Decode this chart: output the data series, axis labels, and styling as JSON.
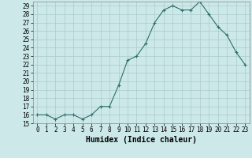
{
  "title": "",
  "xlabel": "Humidex (Indice chaleur)",
  "x": [
    0,
    1,
    2,
    3,
    4,
    5,
    6,
    7,
    8,
    9,
    10,
    11,
    12,
    13,
    14,
    15,
    16,
    17,
    18,
    19,
    20,
    21,
    22,
    23
  ],
  "y": [
    16,
    16,
    15.5,
    16,
    16,
    15.5,
    16,
    17,
    17,
    19.5,
    22.5,
    23,
    24.5,
    27,
    28.5,
    29,
    28.5,
    28.5,
    29.5,
    28,
    26.5,
    25.5,
    23.5,
    22
  ],
  "line_color": "#2d6e6a",
  "marker": "+",
  "bg_color": "#cce8e8",
  "grid_color": "#aacccc",
  "ylim": [
    15,
    29.5
  ],
  "xlim": [
    -0.5,
    23.5
  ],
  "yticks": [
    15,
    16,
    17,
    18,
    19,
    20,
    21,
    22,
    23,
    24,
    25,
    26,
    27,
    28,
    29
  ],
  "xticks": [
    0,
    1,
    2,
    3,
    4,
    5,
    6,
    7,
    8,
    9,
    10,
    11,
    12,
    13,
    14,
    15,
    16,
    17,
    18,
    19,
    20,
    21,
    22,
    23
  ],
  "tick_fontsize": 5.5,
  "label_fontsize": 7
}
